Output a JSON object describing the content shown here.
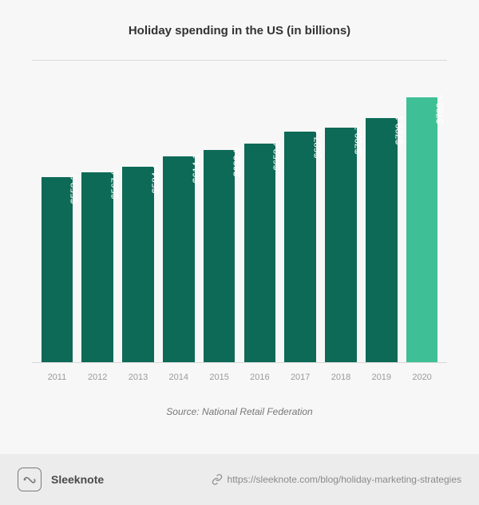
{
  "chart": {
    "type": "bar",
    "title": "Holiday spending in the US (in billions)",
    "title_fontsize": 15,
    "title_color": "#333333",
    "background_color": "#f7f7f7",
    "plot_border_color": "#d9d9d9",
    "ylim": [
      0,
      900
    ],
    "bar_width": 0.78,
    "value_prefix": "$",
    "bar_label_color": "#ffffff",
    "bar_label_fontsize": 12,
    "x_tick_fontsize": 11,
    "x_tick_color": "#9a9a9a",
    "categories": [
      "2011",
      "2012",
      "2013",
      "2014",
      "2015",
      "2016",
      "2017",
      "2018",
      "2019",
      "2020"
    ],
    "values": [
      553.3,
      567.6,
      584.4,
      614.1,
      632.9,
      652.6,
      687.4,
      700.7,
      729.1,
      789.4
    ],
    "bar_colors": [
      "#0d6a57",
      "#0d6a57",
      "#0d6a57",
      "#0d6a57",
      "#0d6a57",
      "#0d6a57",
      "#0d6a57",
      "#0d6a57",
      "#0d6a57",
      "#3fbf95"
    ],
    "source_text": "Source: National Retail Federation",
    "source_color": "#777777",
    "source_fontsize": 12
  },
  "footer": {
    "background_color": "#ececec",
    "brand": "Sleeknote",
    "brand_color": "#4a4a4a",
    "logo_border_color": "#7a7a7a",
    "link_url": "https://sleeknote.com/blog/holiday-marketing-strategies",
    "link_color": "#8a8a8a"
  }
}
